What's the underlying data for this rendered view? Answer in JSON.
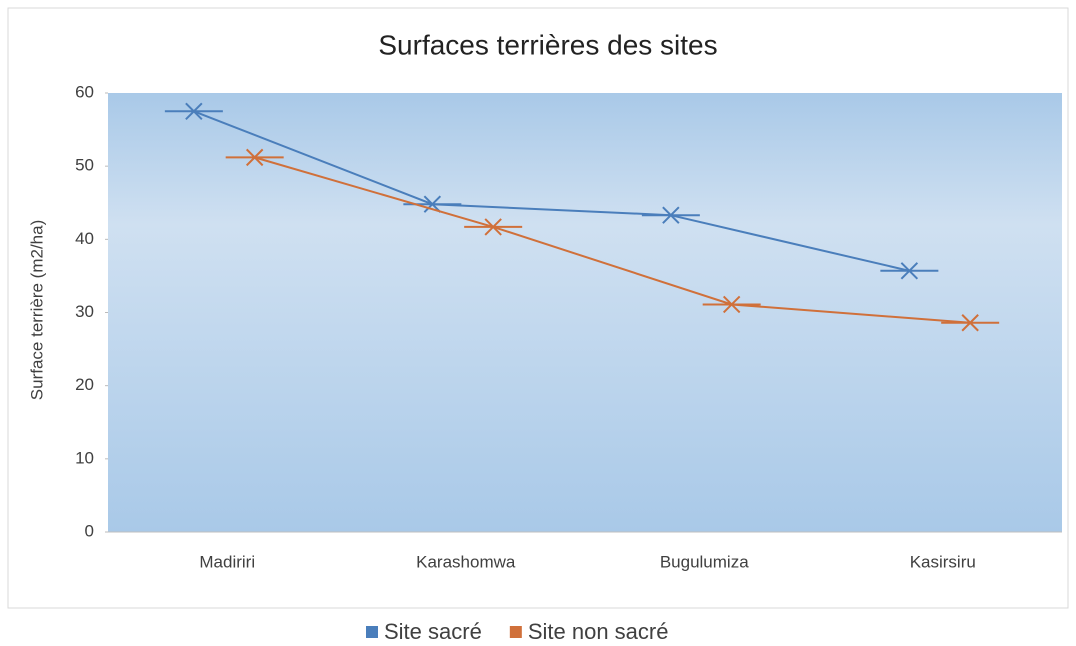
{
  "chart_data": {
    "type": "line",
    "title": "Surfaces terrières des sites",
    "y_label": "Surface terrière (m2/ha)",
    "categories": [
      "Madiriri",
      "Karashomwa",
      "Bugulumiza",
      "Kasirsiru"
    ],
    "series": [
      {
        "name": "Site sacré",
        "color": "#4a7ebb",
        "values": [
          57.5,
          44.8,
          43.3,
          35.7
        ]
      },
      {
        "name": "Site non sacré",
        "color": "#d0703a",
        "values": [
          51.2,
          41.7,
          31.1,
          28.6
        ]
      }
    ],
    "ylim": [
      0,
      60
    ],
    "yticks": [
      0,
      10,
      20,
      30,
      40,
      50,
      60
    ],
    "legend": "bottom"
  }
}
